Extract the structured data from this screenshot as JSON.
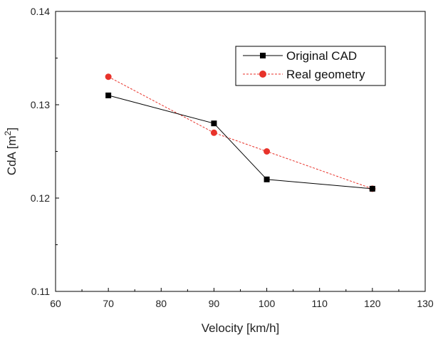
{
  "chart_data": {
    "type": "line",
    "x": [
      70,
      90,
      100,
      120
    ],
    "series": [
      {
        "name": "Original CAD",
        "values": [
          0.131,
          0.128,
          0.122,
          0.121
        ],
        "color": "#000000",
        "marker": "square",
        "line_style": "solid"
      },
      {
        "name": "Real geometry",
        "values": [
          0.133,
          0.127,
          0.125,
          0.121
        ],
        "color": "#e8322a",
        "marker": "circle",
        "line_style": "dashed"
      }
    ],
    "xlabel": "Velocity [km/h]",
    "ylabel": "CdA [m",
    "ylabel_superscript": "2",
    "ylabel_suffix": "]",
    "xlim": [
      60,
      130
    ],
    "ylim": [
      0.11,
      0.14
    ],
    "x_ticks": [
      "60",
      "70",
      "80",
      "90",
      "100",
      "110",
      "120",
      "130"
    ],
    "y_ticks": [
      "0.11",
      "0.12",
      "0.13",
      "0.14"
    ],
    "grid": false,
    "legend_position": "top-right"
  }
}
